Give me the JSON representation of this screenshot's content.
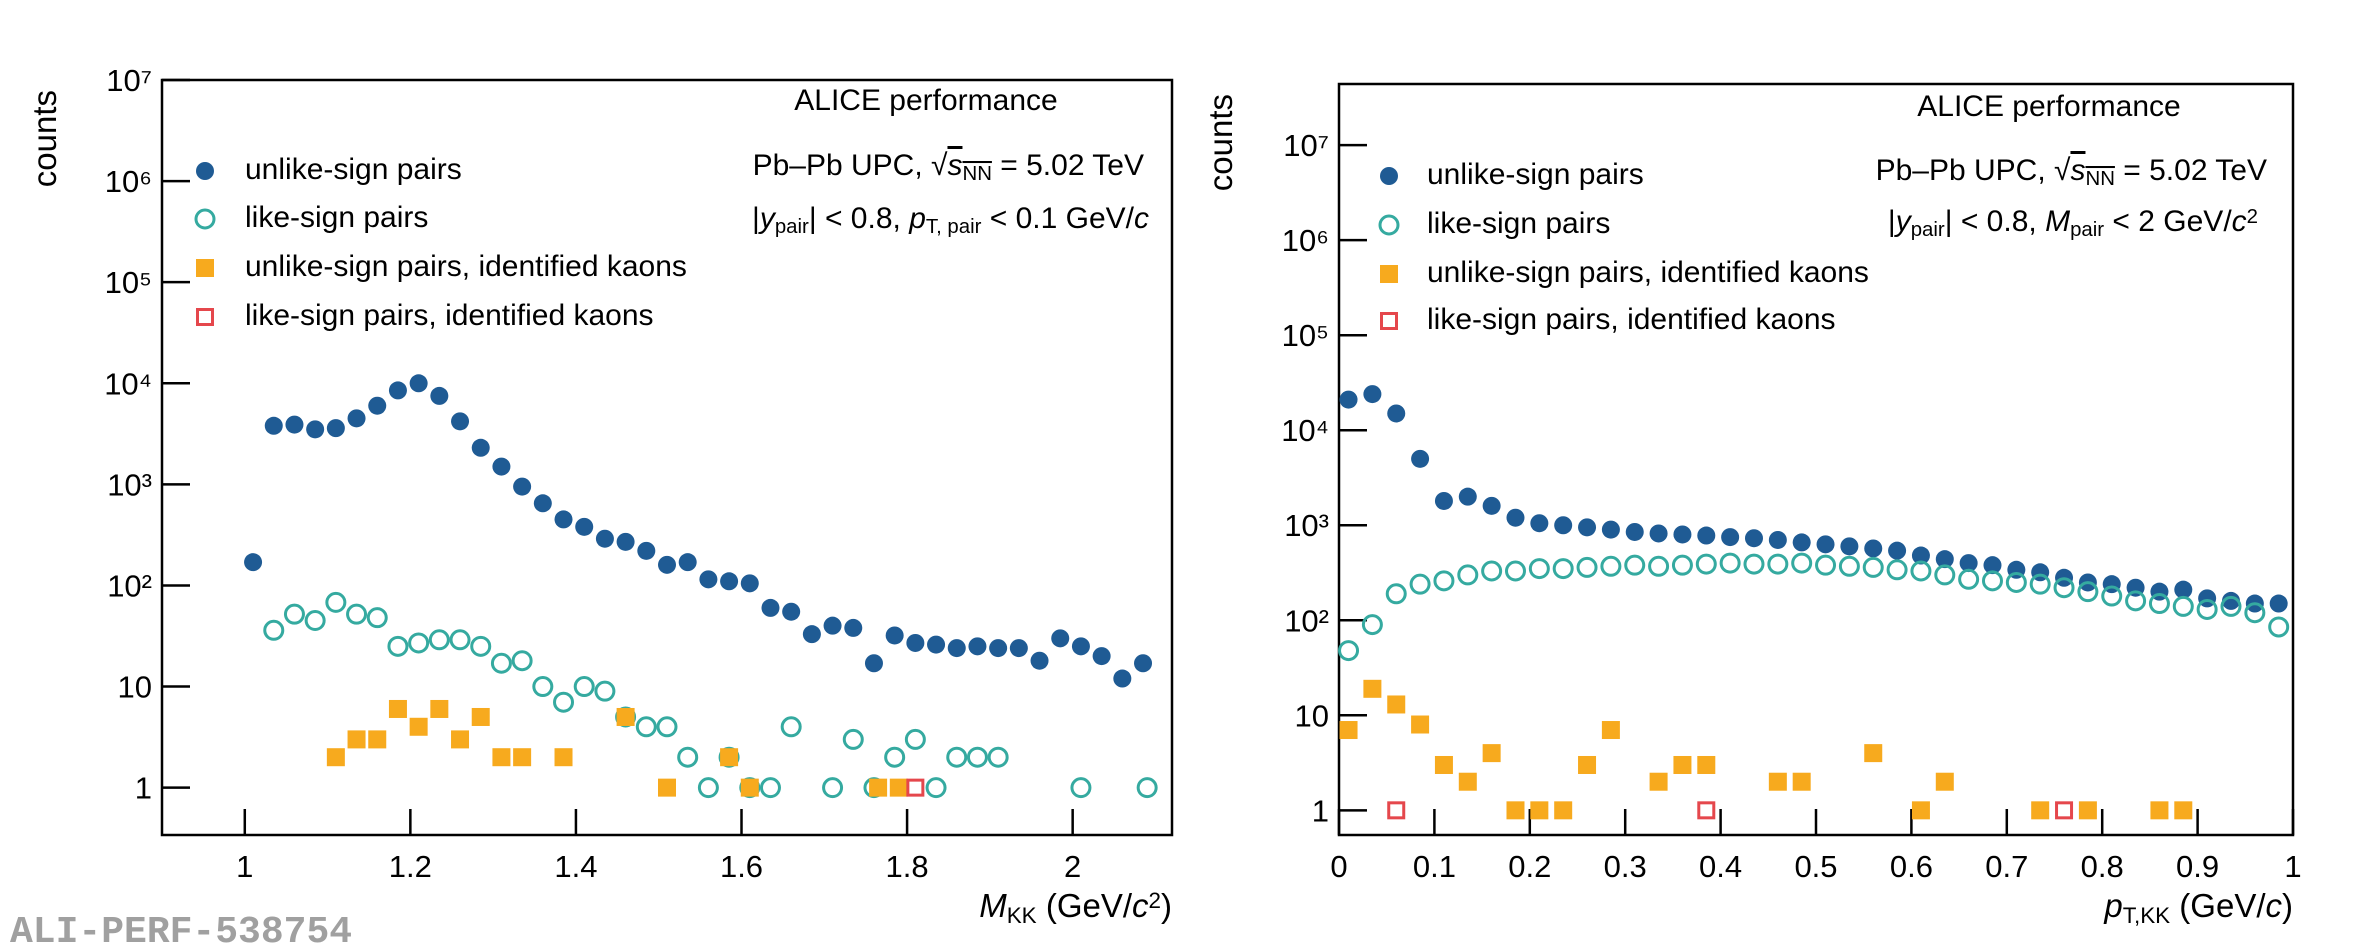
{
  "watermark": "ALI-PERF-538754",
  "chart_data": [
    {
      "type": "scatter",
      "y_label": "counts",
      "log_y": true,
      "x_label": [
        {
          "text": "M",
          "style": "italic"
        },
        {
          "text": "KK",
          "style": "sub"
        },
        {
          "text": " (GeV/"
        },
        {
          "text": "c",
          "style": "italic"
        },
        {
          "text": "2",
          "style": "sup"
        },
        {
          "text": ")"
        }
      ],
      "annotations": [
        [
          {
            "text": "ALICE performance"
          }
        ],
        [
          {
            "text": "Pb–Pb UPC, "
          },
          {
            "text": "√"
          },
          {
            "text": "s",
            "style": "italic over"
          },
          {
            "text": "NN",
            "style": "sub over"
          },
          {
            "text": " = 5.02 TeV"
          }
        ],
        [
          {
            "text": "|"
          },
          {
            "text": "y",
            "style": "italic"
          },
          {
            "text": "pair",
            "style": "sub"
          },
          {
            "text": "| < 0.8, "
          },
          {
            "text": "p",
            "style": "italic"
          },
          {
            "text": "T, pair",
            "style": "sub"
          },
          {
            "text": " < 0.1 GeV/"
          },
          {
            "text": "c",
            "style": "italic"
          }
        ]
      ],
      "xlim": [
        0.9,
        2.12
      ],
      "ylim": [
        0.34,
        10000000
      ],
      "xticks": [
        1,
        1.2,
        1.4,
        1.6,
        1.8,
        2
      ],
      "yticks": [
        1,
        10,
        {
          "value": 100,
          "label": "10²"
        },
        {
          "value": 1000,
          "label": "10³"
        },
        {
          "value": 10000,
          "label": "10⁴"
        },
        {
          "value": 100000,
          "label": "10⁵"
        },
        {
          "value": 1000000,
          "label": "10⁶"
        },
        {
          "value": 10000000,
          "label": "10⁷"
        }
      ],
      "series": [
        {
          "name": "unlike-sign pairs",
          "color": "#1f5b94",
          "marker": "circle",
          "x": [
            1.01,
            1.035,
            1.06,
            1.085,
            1.11,
            1.135,
            1.16,
            1.185,
            1.21,
            1.235,
            1.26,
            1.285,
            1.31,
            1.335,
            1.36,
            1.385,
            1.41,
            1.435,
            1.46,
            1.485,
            1.51,
            1.535,
            1.56,
            1.585,
            1.61,
            1.635,
            1.66,
            1.685,
            1.71,
            1.735,
            1.76,
            1.785,
            1.81,
            1.835,
            1.86,
            1.885,
            1.91,
            1.935,
            1.96,
            1.985,
            2.01,
            2.035,
            2.06,
            2.085
          ],
          "values": [
            170,
            3800,
            3900,
            3500,
            3600,
            4500,
            6000,
            8500,
            10000,
            7500,
            4200,
            2300,
            1500,
            950,
            650,
            450,
            380,
            290,
            270,
            220,
            160,
            170,
            115,
            110,
            105,
            60,
            55,
            33,
            40,
            38,
            17,
            32,
            27,
            26,
            24,
            25,
            24,
            24,
            18,
            30,
            25,
            20,
            12,
            17
          ]
        },
        {
          "name": "like-sign pairs",
          "color": "#35aaa0",
          "marker": "open-circle",
          "x": [
            1.035,
            1.06,
            1.085,
            1.11,
            1.135,
            1.16,
            1.185,
            1.21,
            1.235,
            1.26,
            1.285,
            1.31,
            1.335,
            1.36,
            1.385,
            1.41,
            1.435,
            1.46,
            1.485,
            1.51,
            1.535,
            1.56,
            1.585,
            1.61,
            1.635,
            1.66,
            1.71,
            1.735,
            1.76,
            1.785,
            1.81,
            1.835,
            1.86,
            1.885,
            1.91,
            2.01,
            2.09
          ],
          "values": [
            36,
            52,
            45,
            68,
            52,
            48,
            25,
            27,
            29,
            29,
            25,
            17,
            18,
            10,
            7,
            10,
            9,
            5,
            4,
            4,
            2,
            1,
            2,
            1,
            1,
            4,
            1,
            3,
            1,
            2,
            3,
            1,
            2,
            2,
            2,
            1,
            1
          ]
        },
        {
          "name": "unlike-sign pairs, identified kaons",
          "color": "#f7aa1e",
          "marker": "square",
          "x": [
            1.11,
            1.135,
            1.16,
            1.185,
            1.21,
            1.235,
            1.26,
            1.285,
            1.31,
            1.335,
            1.385,
            1.46,
            1.51,
            1.585,
            1.61,
            1.765,
            1.79
          ],
          "values": [
            2,
            3,
            3,
            6,
            4,
            6,
            3,
            5,
            2,
            2,
            2,
            5,
            1,
            2,
            1,
            1,
            1
          ]
        },
        {
          "name": "like-sign pairs, identified kaons",
          "color": "#e5474c",
          "marker": "open-square",
          "x": [
            1.81
          ],
          "values": [
            1
          ]
        }
      ]
    },
    {
      "type": "scatter",
      "y_label": "counts",
      "log_y": true,
      "x_label": [
        {
          "text": "p",
          "style": "italic"
        },
        {
          "text": "T,KK",
          "style": "sub"
        },
        {
          "text": " (GeV/"
        },
        {
          "text": "c",
          "style": "italic"
        },
        {
          "text": ")"
        }
      ],
      "annotations": [
        [
          {
            "text": "ALICE performance"
          }
        ],
        [
          {
            "text": "Pb–Pb UPC, "
          },
          {
            "text": "√"
          },
          {
            "text": "s",
            "style": "italic over"
          },
          {
            "text": "NN",
            "style": "sub over"
          },
          {
            "text": " = 5.02 TeV"
          }
        ],
        [
          {
            "text": "|"
          },
          {
            "text": "y",
            "style": "italic"
          },
          {
            "text": "pair",
            "style": "sub"
          },
          {
            "text": "| < 0.8, "
          },
          {
            "text": "M",
            "style": "italic"
          },
          {
            "text": "pair",
            "style": "sub"
          },
          {
            "text": " < 2 GeV/"
          },
          {
            "text": "c",
            "style": "italic"
          },
          {
            "text": "2",
            "style": "sup"
          }
        ]
      ],
      "xlim": [
        0,
        1
      ],
      "ylim": [
        0.55,
        44000000
      ],
      "xticks": [
        0,
        0.1,
        0.2,
        0.3,
        0.4,
        0.5,
        0.6,
        0.7,
        0.8,
        0.9,
        1
      ],
      "yticks": [
        1,
        10,
        {
          "value": 100,
          "label": "10²"
        },
        {
          "value": 1000,
          "label": "10³"
        },
        {
          "value": 10000,
          "label": "10⁴"
        },
        {
          "value": 100000,
          "label": "10⁵"
        },
        {
          "value": 1000000,
          "label": "10⁶"
        },
        {
          "value": 10000000,
          "label": "10⁷"
        }
      ],
      "series": [
        {
          "name": "unlike-sign pairs",
          "color": "#1f5b94",
          "marker": "circle",
          "x": [
            0.01,
            0.035,
            0.06,
            0.085,
            0.11,
            0.135,
            0.16,
            0.185,
            0.21,
            0.235,
            0.26,
            0.285,
            0.31,
            0.335,
            0.36,
            0.385,
            0.41,
            0.435,
            0.46,
            0.485,
            0.51,
            0.535,
            0.56,
            0.585,
            0.61,
            0.635,
            0.66,
            0.685,
            0.71,
            0.735,
            0.76,
            0.785,
            0.81,
            0.835,
            0.86,
            0.885,
            0.91,
            0.935,
            0.96,
            0.985
          ],
          "values": [
            21000,
            24000,
            15000,
            5000,
            1800,
            2000,
            1600,
            1200,
            1050,
            1000,
            950,
            900,
            850,
            820,
            800,
            780,
            750,
            730,
            700,
            660,
            630,
            600,
            570,
            540,
            480,
            440,
            400,
            380,
            340,
            320,
            280,
            250,
            240,
            220,
            200,
            210,
            170,
            160,
            150,
            150
          ]
        },
        {
          "name": "like-sign pairs",
          "color": "#35aaa0",
          "marker": "open-circle",
          "x": [
            0.01,
            0.035,
            0.06,
            0.085,
            0.11,
            0.135,
            0.16,
            0.185,
            0.21,
            0.235,
            0.26,
            0.285,
            0.31,
            0.335,
            0.36,
            0.385,
            0.41,
            0.435,
            0.46,
            0.485,
            0.51,
            0.535,
            0.56,
            0.585,
            0.61,
            0.635,
            0.66,
            0.685,
            0.71,
            0.735,
            0.76,
            0.785,
            0.81,
            0.835,
            0.86,
            0.885,
            0.91,
            0.935,
            0.96,
            0.985
          ],
          "values": [
            48,
            90,
            190,
            240,
            260,
            300,
            330,
            330,
            350,
            350,
            360,
            370,
            380,
            370,
            380,
            390,
            400,
            390,
            390,
            400,
            380,
            370,
            360,
            340,
            330,
            300,
            270,
            260,
            250,
            240,
            220,
            200,
            180,
            160,
            150,
            140,
            130,
            140,
            120,
            85
          ]
        },
        {
          "name": "unlike-sign pairs, identified kaons",
          "color": "#f7aa1e",
          "marker": "square",
          "x": [
            0.01,
            0.035,
            0.06,
            0.085,
            0.11,
            0.135,
            0.16,
            0.185,
            0.21,
            0.235,
            0.26,
            0.285,
            0.335,
            0.36,
            0.385,
            0.46,
            0.485,
            0.56,
            0.61,
            0.635,
            0.735,
            0.785,
            0.86,
            0.885
          ],
          "values": [
            7,
            19,
            13,
            8,
            3,
            2,
            4,
            1,
            1,
            1,
            3,
            7,
            2,
            3,
            3,
            2,
            2,
            4,
            1,
            2,
            1,
            1,
            1,
            1
          ]
        },
        {
          "name": "like-sign pairs, identified kaons",
          "color": "#e5474c",
          "marker": "open-square",
          "x": [
            0.06,
            0.385,
            0.76
          ],
          "values": [
            1,
            1,
            1
          ]
        }
      ]
    }
  ]
}
